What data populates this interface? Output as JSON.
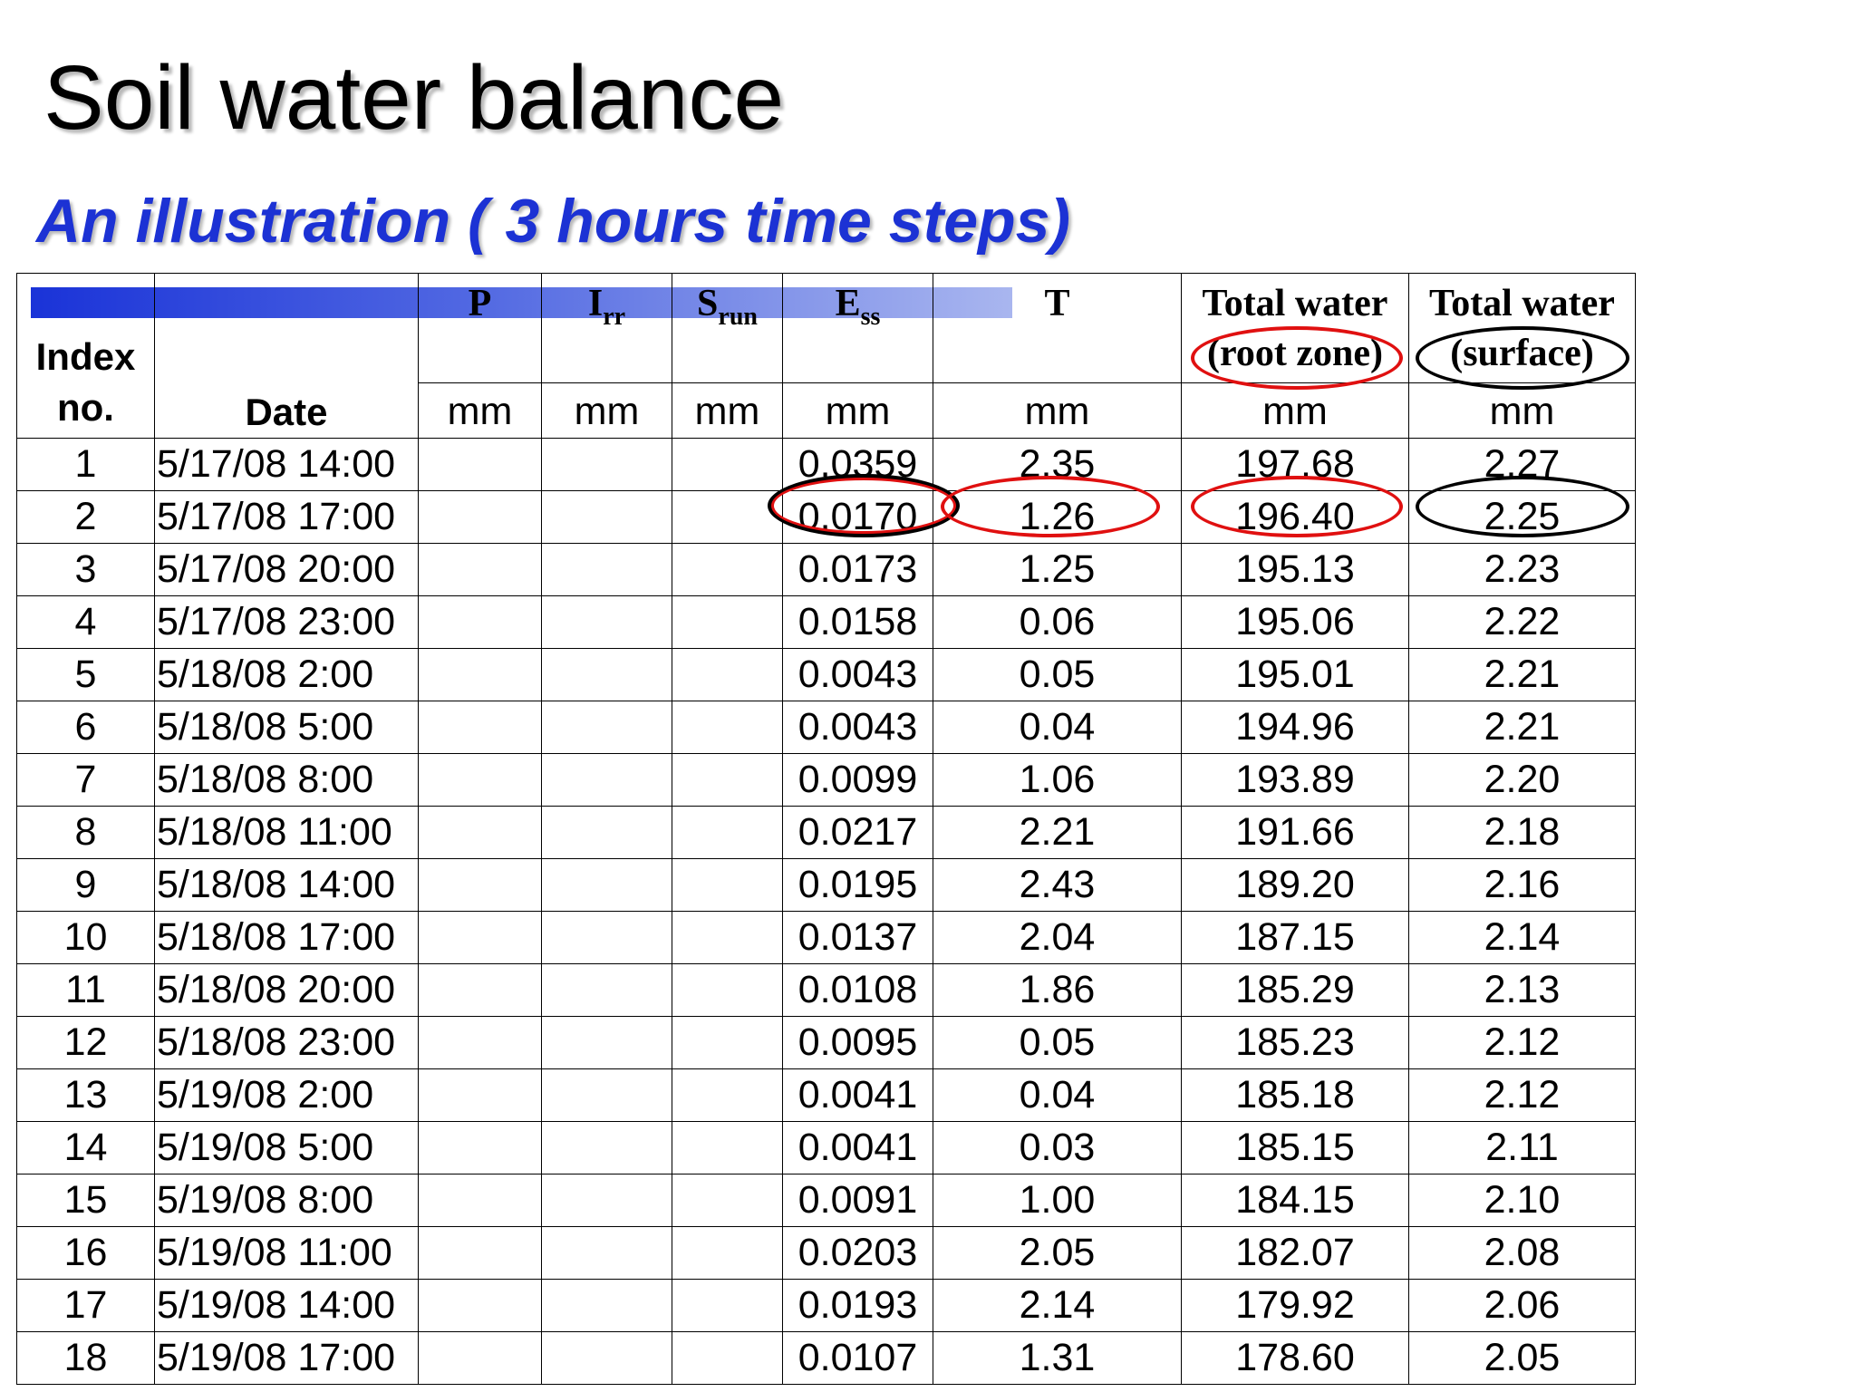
{
  "title": "Soil water balance",
  "subtitle": "An illustration ( 3 hours time steps)",
  "accent_colors": {
    "subtitle": "#1c32d4",
    "header_bar_start": "#1a33d8",
    "header_bar_end": "#a9b6ef",
    "circle_red": "#e01010",
    "circle_black": "#000000"
  },
  "table": {
    "headers": {
      "index": "Index no.",
      "date": "Date",
      "p": {
        "main": "P",
        "sub": ""
      },
      "irr": {
        "main": "I",
        "sub": "rr"
      },
      "srun": {
        "main": "S",
        "sub": "run"
      },
      "ess": {
        "main": "E",
        "sub": "ss"
      },
      "t": {
        "main": "T",
        "sub": ""
      },
      "total_root": "Total water (root zone)",
      "total_surface": "Total water (surface)"
    },
    "units": [
      "mm",
      "mm",
      "mm",
      "mm",
      "mm",
      "mm",
      "mm"
    ],
    "rows": [
      {
        "index": "1",
        "date": "5/17/08 14:00",
        "p": "",
        "irr": "",
        "srun": "",
        "ess": "0.0359",
        "t": "2.35",
        "root": "197.68",
        "surface": "2.27"
      },
      {
        "index": "2",
        "date": "5/17/08 17:00",
        "p": "",
        "irr": "",
        "srun": "",
        "ess": "0.0170",
        "t": "1.26",
        "root": "196.40",
        "surface": "2.25"
      },
      {
        "index": "3",
        "date": "5/17/08 20:00",
        "p": "",
        "irr": "",
        "srun": "",
        "ess": "0.0173",
        "t": "1.25",
        "root": "195.13",
        "surface": "2.23"
      },
      {
        "index": "4",
        "date": "5/17/08 23:00",
        "p": "",
        "irr": "",
        "srun": "",
        "ess": "0.0158",
        "t": "0.06",
        "root": "195.06",
        "surface": "2.22"
      },
      {
        "index": "5",
        "date": "5/18/08 2:00",
        "p": "",
        "irr": "",
        "srun": "",
        "ess": "0.0043",
        "t": "0.05",
        "root": "195.01",
        "surface": "2.21"
      },
      {
        "index": "6",
        "date": "5/18/08 5:00",
        "p": "",
        "irr": "",
        "srun": "",
        "ess": "0.0043",
        "t": "0.04",
        "root": "194.96",
        "surface": "2.21"
      },
      {
        "index": "7",
        "date": "5/18/08 8:00",
        "p": "",
        "irr": "",
        "srun": "",
        "ess": "0.0099",
        "t": "1.06",
        "root": "193.89",
        "surface": "2.20"
      },
      {
        "index": "8",
        "date": "5/18/08 11:00",
        "p": "",
        "irr": "",
        "srun": "",
        "ess": "0.0217",
        "t": "2.21",
        "root": "191.66",
        "surface": "2.18"
      },
      {
        "index": "9",
        "date": "5/18/08 14:00",
        "p": "",
        "irr": "",
        "srun": "",
        "ess": "0.0195",
        "t": "2.43",
        "root": "189.20",
        "surface": "2.16"
      },
      {
        "index": "10",
        "date": "5/18/08 17:00",
        "p": "",
        "irr": "",
        "srun": "",
        "ess": "0.0137",
        "t": "2.04",
        "root": "187.15",
        "surface": "2.14"
      },
      {
        "index": "11",
        "date": "5/18/08 20:00",
        "p": "",
        "irr": "",
        "srun": "",
        "ess": "0.0108",
        "t": "1.86",
        "root": "185.29",
        "surface": "2.13"
      },
      {
        "index": "12",
        "date": "5/18/08 23:00",
        "p": "",
        "irr": "",
        "srun": "",
        "ess": "0.0095",
        "t": "0.05",
        "root": "185.23",
        "surface": "2.12"
      },
      {
        "index": "13",
        "date": "5/19/08 2:00",
        "p": "",
        "irr": "",
        "srun": "",
        "ess": "0.0041",
        "t": "0.04",
        "root": "185.18",
        "surface": "2.12"
      },
      {
        "index": "14",
        "date": "5/19/08 5:00",
        "p": "",
        "irr": "",
        "srun": "",
        "ess": "0.0041",
        "t": "0.03",
        "root": "185.15",
        "surface": "2.11"
      },
      {
        "index": "15",
        "date": "5/19/08 8:00",
        "p": "",
        "irr": "",
        "srun": "",
        "ess": "0.0091",
        "t": "1.00",
        "root": "184.15",
        "surface": "2.10"
      },
      {
        "index": "16",
        "date": "5/19/08 11:00",
        "p": "",
        "irr": "",
        "srun": "",
        "ess": "0.0203",
        "t": "2.05",
        "root": "182.07",
        "surface": "2.08"
      },
      {
        "index": "17",
        "date": "5/19/08 14:00",
        "p": "",
        "irr": "",
        "srun": "",
        "ess": "0.0193",
        "t": "2.14",
        "root": "179.92",
        "surface": "2.06"
      },
      {
        "index": "18",
        "date": "5/19/08 17:00",
        "p": "",
        "irr": "",
        "srun": "",
        "ess": "0.0107",
        "t": "1.31",
        "root": "178.60",
        "surface": "2.05"
      }
    ]
  }
}
